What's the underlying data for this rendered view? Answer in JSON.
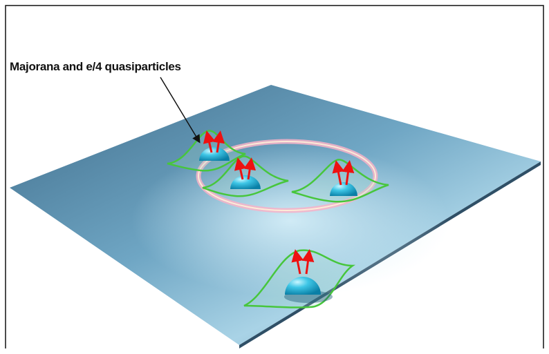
{
  "annotation": {
    "label": "Majorana and e/4 quasiparticles"
  }
}
